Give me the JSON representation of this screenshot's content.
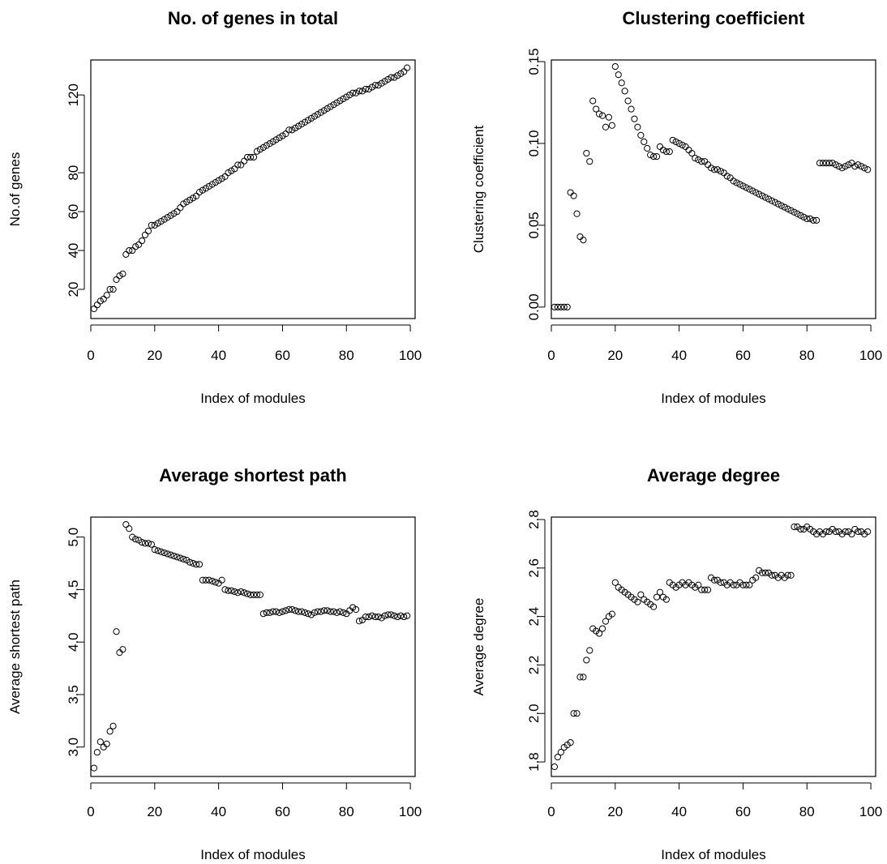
{
  "chart_data": [
    {
      "type": "scatter",
      "title": "No. of genes in total",
      "xlabel": "Index of modules",
      "ylabel": "No.of genes",
      "xlim": [
        0,
        101.5
      ],
      "ylim": [
        5,
        138
      ],
      "xticks": [
        0,
        20,
        40,
        60,
        80,
        100
      ],
      "yticks": [
        20,
        40,
        60,
        80,
        120
      ],
      "ytick_labels": [
        "20",
        "40",
        "60",
        "80",
        "120"
      ],
      "grid": false,
      "x": [
        1,
        2,
        3,
        4,
        5,
        6,
        7,
        8,
        9,
        10,
        11,
        12,
        13,
        14,
        15,
        16,
        17,
        18,
        19,
        20,
        21,
        22,
        23,
        24,
        25,
        26,
        27,
        28,
        29,
        30,
        31,
        32,
        33,
        34,
        35,
        36,
        37,
        38,
        39,
        40,
        41,
        42,
        43,
        44,
        45,
        46,
        47,
        48,
        49,
        50,
        51,
        52,
        53,
        54,
        55,
        56,
        57,
        58,
        59,
        60,
        61,
        62,
        63,
        64,
        65,
        66,
        67,
        68,
        69,
        70,
        71,
        72,
        73,
        74,
        75,
        76,
        77,
        78,
        79,
        80,
        81,
        82,
        83,
        84,
        85,
        86,
        87,
        88,
        89,
        90,
        91,
        92,
        93,
        94,
        95,
        96,
        97,
        98,
        99
      ],
      "y": [
        10,
        12,
        14,
        15,
        17,
        20,
        20,
        25,
        27,
        28,
        38,
        40,
        40,
        42,
        43,
        45,
        48,
        50,
        53,
        53,
        54,
        55,
        56,
        57,
        58,
        59,
        60,
        62,
        64,
        65,
        66,
        67,
        68,
        70,
        71,
        72,
        73,
        74,
        75,
        76,
        77,
        78,
        80,
        81,
        82,
        84,
        84,
        86,
        88,
        88,
        88,
        91,
        92,
        93,
        94,
        95,
        96,
        97,
        98,
        99,
        100,
        102,
        102,
        103,
        104,
        105,
        106,
        107,
        108,
        109,
        110,
        111,
        112,
        113,
        114,
        115,
        116,
        117,
        118,
        119,
        120,
        121,
        121,
        122,
        122,
        123,
        123,
        124,
        125,
        125,
        126,
        127,
        128,
        129,
        129,
        130,
        131,
        132,
        134
      ]
    },
    {
      "type": "scatter",
      "title": "Clustering coefficient",
      "xlabel": "Index of modules",
      "ylabel": "Clustering coefficient",
      "xlim": [
        0,
        101.5
      ],
      "ylim": [
        -0.007,
        0.151
      ],
      "xticks": [
        0,
        20,
        40,
        60,
        80,
        100
      ],
      "yticks": [
        0,
        0.05,
        0.1,
        0.15
      ],
      "ytick_labels": [
        "0.00",
        "0.05",
        "0.10",
        "0.15"
      ],
      "grid": false,
      "x": [
        1,
        2,
        3,
        4,
        5,
        6,
        7,
        8,
        9,
        10,
        11,
        12,
        13,
        14,
        15,
        16,
        17,
        18,
        19,
        20,
        21,
        22,
        23,
        24,
        25,
        26,
        27,
        28,
        29,
        30,
        31,
        32,
        33,
        34,
        35,
        36,
        37,
        38,
        39,
        40,
        41,
        42,
        43,
        44,
        45,
        46,
        47,
        48,
        49,
        50,
        51,
        52,
        53,
        54,
        55,
        56,
        57,
        58,
        59,
        60,
        61,
        62,
        63,
        64,
        65,
        66,
        67,
        68,
        69,
        70,
        71,
        72,
        73,
        74,
        75,
        76,
        77,
        78,
        79,
        80,
        81,
        82,
        83,
        84,
        85,
        86,
        87,
        88,
        89,
        90,
        91,
        92,
        93,
        94,
        95,
        96,
        97,
        98,
        99
      ],
      "y": [
        0,
        0,
        0,
        0,
        0,
        0.07,
        0.068,
        0.057,
        0.043,
        0.041,
        0.094,
        0.089,
        0.126,
        0.121,
        0.118,
        0.117,
        0.11,
        0.116,
        0.111,
        0.147,
        0.142,
        0.137,
        0.132,
        0.126,
        0.121,
        0.115,
        0.11,
        0.105,
        0.101,
        0.097,
        0.093,
        0.092,
        0.092,
        0.098,
        0.096,
        0.095,
        0.095,
        0.102,
        0.101,
        0.1,
        0.099,
        0.098,
        0.096,
        0.094,
        0.091,
        0.09,
        0.089,
        0.089,
        0.087,
        0.085,
        0.084,
        0.084,
        0.083,
        0.082,
        0.08,
        0.079,
        0.077,
        0.076,
        0.075,
        0.074,
        0.073,
        0.072,
        0.071,
        0.07,
        0.069,
        0.068,
        0.067,
        0.066,
        0.065,
        0.064,
        0.063,
        0.062,
        0.061,
        0.06,
        0.059,
        0.058,
        0.057,
        0.056,
        0.055,
        0.054,
        0.054,
        0.053,
        0.053,
        0.088,
        0.088,
        0.088,
        0.088,
        0.088,
        0.087,
        0.086,
        0.085,
        0.086,
        0.087,
        0.088,
        0.086,
        0.087,
        0.086,
        0.085,
        0.084
      ]
    },
    {
      "type": "scatter",
      "title": "Average shortest path",
      "xlabel": "Index of modules",
      "ylabel": "Average shortest path",
      "xlim": [
        0,
        101.5
      ],
      "ylim": [
        2.72,
        5.19
      ],
      "xticks": [
        0,
        20,
        40,
        60,
        80,
        100
      ],
      "yticks": [
        3.0,
        3.5,
        4.0,
        4.5,
        5.0
      ],
      "ytick_labels": [
        "3.0",
        "3.5",
        "4.0",
        "4.5",
        "5.0"
      ],
      "grid": false,
      "x": [
        1,
        2,
        3,
        4,
        5,
        6,
        7,
        8,
        9,
        10,
        11,
        12,
        13,
        14,
        15,
        16,
        17,
        18,
        19,
        20,
        21,
        22,
        23,
        24,
        25,
        26,
        27,
        28,
        29,
        30,
        31,
        32,
        33,
        34,
        35,
        36,
        37,
        38,
        39,
        40,
        41,
        42,
        43,
        44,
        45,
        46,
        47,
        48,
        49,
        50,
        51,
        52,
        53,
        54,
        55,
        56,
        57,
        58,
        59,
        60,
        61,
        62,
        63,
        64,
        65,
        66,
        67,
        68,
        69,
        70,
        71,
        72,
        73,
        74,
        75,
        76,
        77,
        78,
        79,
        80,
        81,
        82,
        83,
        84,
        85,
        86,
        87,
        88,
        89,
        90,
        91,
        92,
        93,
        94,
        95,
        96,
        97,
        98,
        99
      ],
      "y": [
        2.8,
        2.95,
        3.05,
        3.0,
        3.03,
        3.15,
        3.2,
        4.1,
        3.9,
        3.93,
        5.12,
        5.08,
        5.0,
        4.98,
        4.97,
        4.95,
        4.94,
        4.94,
        4.93,
        4.88,
        4.87,
        4.86,
        4.85,
        4.84,
        4.83,
        4.82,
        4.81,
        4.8,
        4.79,
        4.78,
        4.76,
        4.75,
        4.74,
        4.74,
        4.59,
        4.59,
        4.59,
        4.58,
        4.57,
        4.56,
        4.59,
        4.5,
        4.49,
        4.49,
        4.48,
        4.47,
        4.48,
        4.47,
        4.46,
        4.45,
        4.45,
        4.45,
        4.45,
        4.27,
        4.28,
        4.28,
        4.29,
        4.29,
        4.28,
        4.29,
        4.3,
        4.31,
        4.31,
        4.3,
        4.29,
        4.29,
        4.28,
        4.27,
        4.26,
        4.28,
        4.29,
        4.29,
        4.3,
        4.3,
        4.29,
        4.29,
        4.28,
        4.29,
        4.28,
        4.27,
        4.3,
        4.33,
        4.31,
        4.2,
        4.21,
        4.24,
        4.24,
        4.25,
        4.24,
        4.24,
        4.23,
        4.25,
        4.26,
        4.26,
        4.25,
        4.24,
        4.25,
        4.24,
        4.25
      ]
    },
    {
      "type": "scatter",
      "title": "Average degree",
      "xlabel": "Index of modules",
      "ylabel": "Average degree",
      "xlim": [
        0,
        101.5
      ],
      "ylim": [
        1.74,
        2.81
      ],
      "xticks": [
        0,
        20,
        40,
        60,
        80,
        100
      ],
      "yticks": [
        1.8,
        2.0,
        2.2,
        2.4,
        2.6,
        2.8
      ],
      "ytick_labels": [
        "1.8",
        "2.0",
        "2.2",
        "2.4",
        "2.6",
        "2.8"
      ],
      "grid": false,
      "x": [
        1,
        2,
        3,
        4,
        5,
        6,
        7,
        8,
        9,
        10,
        11,
        12,
        13,
        14,
        15,
        16,
        17,
        18,
        19,
        20,
        21,
        22,
        23,
        24,
        25,
        26,
        27,
        28,
        29,
        30,
        31,
        32,
        33,
        34,
        35,
        36,
        37,
        38,
        39,
        40,
        41,
        42,
        43,
        44,
        45,
        46,
        47,
        48,
        49,
        50,
        51,
        52,
        53,
        54,
        55,
        56,
        57,
        58,
        59,
        60,
        61,
        62,
        63,
        64,
        65,
        66,
        67,
        68,
        69,
        70,
        71,
        72,
        73,
        74,
        75,
        76,
        77,
        78,
        79,
        80,
        81,
        82,
        83,
        84,
        85,
        86,
        87,
        88,
        89,
        90,
        91,
        92,
        93,
        94,
        95,
        96,
        97,
        98,
        99
      ],
      "y": [
        1.78,
        1.82,
        1.84,
        1.86,
        1.87,
        1.88,
        2.0,
        2.0,
        2.15,
        2.15,
        2.22,
        2.26,
        2.35,
        2.34,
        2.33,
        2.35,
        2.38,
        2.4,
        2.41,
        2.54,
        2.52,
        2.51,
        2.5,
        2.49,
        2.48,
        2.47,
        2.46,
        2.49,
        2.47,
        2.46,
        2.45,
        2.44,
        2.48,
        2.5,
        2.48,
        2.47,
        2.54,
        2.53,
        2.52,
        2.53,
        2.54,
        2.53,
        2.54,
        2.53,
        2.52,
        2.53,
        2.51,
        2.51,
        2.51,
        2.56,
        2.55,
        2.55,
        2.54,
        2.54,
        2.53,
        2.54,
        2.53,
        2.53,
        2.54,
        2.53,
        2.53,
        2.53,
        2.55,
        2.56,
        2.59,
        2.58,
        2.58,
        2.58,
        2.57,
        2.57,
        2.56,
        2.57,
        2.56,
        2.57,
        2.57,
        2.77,
        2.77,
        2.76,
        2.76,
        2.77,
        2.76,
        2.75,
        2.74,
        2.75,
        2.74,
        2.75,
        2.75,
        2.76,
        2.75,
        2.75,
        2.74,
        2.75,
        2.75,
        2.74,
        2.76,
        2.75,
        2.75,
        2.74,
        2.75
      ]
    }
  ]
}
